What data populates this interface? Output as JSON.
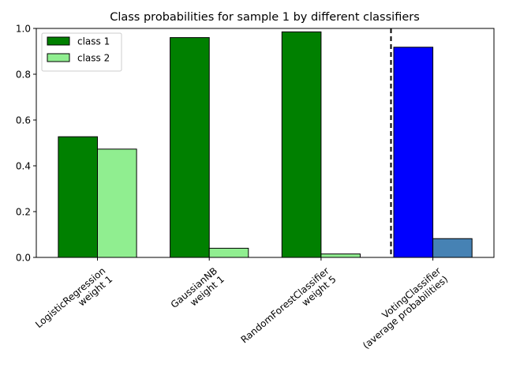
{
  "chart_data": {
    "type": "bar",
    "title": "Class probabilities for sample 1 by different classifiers",
    "xlabel": "",
    "ylabel": "",
    "ylim": [
      0,
      1.0
    ],
    "yticks": [
      "0.0",
      "0.2",
      "0.4",
      "0.6",
      "0.8",
      "1.0"
    ],
    "categories": [
      [
        "LogisticRegression",
        "weight 1"
      ],
      [
        "GaussianNB",
        "weight 1"
      ],
      [
        "RandomForestClassifier",
        "weight 5"
      ],
      [
        "VotingClassifier",
        "(average probabilities)"
      ]
    ],
    "series": [
      {
        "name": "class 1",
        "values": [
          0.527,
          0.96,
          0.985,
          0.918
        ],
        "colors": [
          "#008000",
          "#008000",
          "#008000",
          "#0000ff"
        ]
      },
      {
        "name": "class 2",
        "values": [
          0.473,
          0.04,
          0.015,
          0.082
        ],
        "colors": [
          "#90ee90",
          "#90ee90",
          "#90ee90",
          "#4682b4"
        ]
      }
    ],
    "separator": "dashed vertical line between the individual classifiers and VotingClassifier",
    "legend": {
      "placement": "top-left",
      "entries": [
        {
          "label": "class 1",
          "color": "#008000"
        },
        {
          "label": "class 2",
          "color": "#90ee90"
        }
      ]
    },
    "grid": false
  }
}
